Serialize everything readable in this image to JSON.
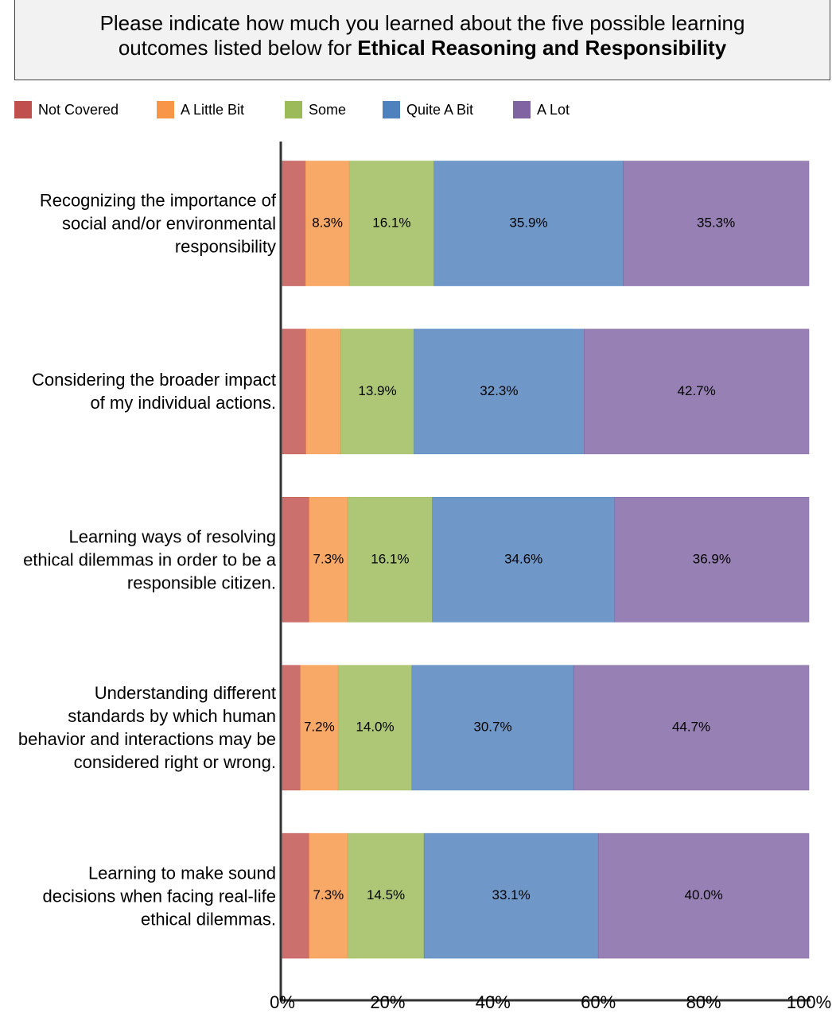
{
  "chart_data": {
    "type": "stacked-bar-horizontal",
    "title_lines": [
      "Please indicate how much you learned about the five possible learning",
      "outcomes listed below for"
    ],
    "title_emphasis": "Ethical Reasoning and Responsibility",
    "categories": [
      "Recognizing the importance of social and/or environmental responsibility",
      "Considering the broader impact of my individual actions.",
      "Learning ways of resolving ethical dilemmas in order to be a responsible citizen.",
      "Understanding different standards by which human behavior and interactions may be considered right or wrong.",
      "Learning to make sound decisions when facing real-life ethical dilemmas."
    ],
    "series": [
      {
        "name": "Not Covered",
        "color": "#c0504d",
        "values": [
          4.4,
          4.5,
          5.1,
          3.4,
          5.1
        ],
        "value_labels": [
          null,
          null,
          null,
          null,
          null
        ]
      },
      {
        "name": "A Little Bit",
        "color": "#f79646",
        "values": [
          8.3,
          6.6,
          7.3,
          7.2,
          7.3
        ],
        "value_labels": [
          "8.3%",
          null,
          "7.3%",
          "7.2%",
          "7.3%"
        ]
      },
      {
        "name": "Some",
        "color": "#9bbb59",
        "values": [
          16.1,
          13.9,
          16.1,
          14.0,
          14.5
        ],
        "value_labels": [
          "16.1%",
          "13.9%",
          "16.1%",
          "14.0%",
          "14.5%"
        ]
      },
      {
        "name": "Quite A Bit",
        "color": "#4f81bd",
        "values": [
          35.9,
          32.3,
          34.6,
          30.7,
          33.1
        ],
        "value_labels": [
          "35.9%",
          "32.3%",
          "34.6%",
          "30.7%",
          "33.1%"
        ]
      },
      {
        "name": "A Lot",
        "color": "#8064a2",
        "values": [
          35.3,
          42.7,
          36.9,
          44.7,
          40.0
        ],
        "value_labels": [
          "35.3%",
          "42.7%",
          "36.9%",
          "44.7%",
          "40.0%"
        ]
      }
    ],
    "xlim": [
      0,
      100
    ],
    "xticks": [
      {
        "value": 0,
        "label": "0%"
      },
      {
        "value": 20,
        "label": "20%"
      },
      {
        "value": 40,
        "label": "40%"
      },
      {
        "value": 60,
        "label": "60%"
      },
      {
        "value": 80,
        "label": "80%"
      },
      {
        "value": 100,
        "label": "100%"
      }
    ],
    "legend": "top-left"
  }
}
